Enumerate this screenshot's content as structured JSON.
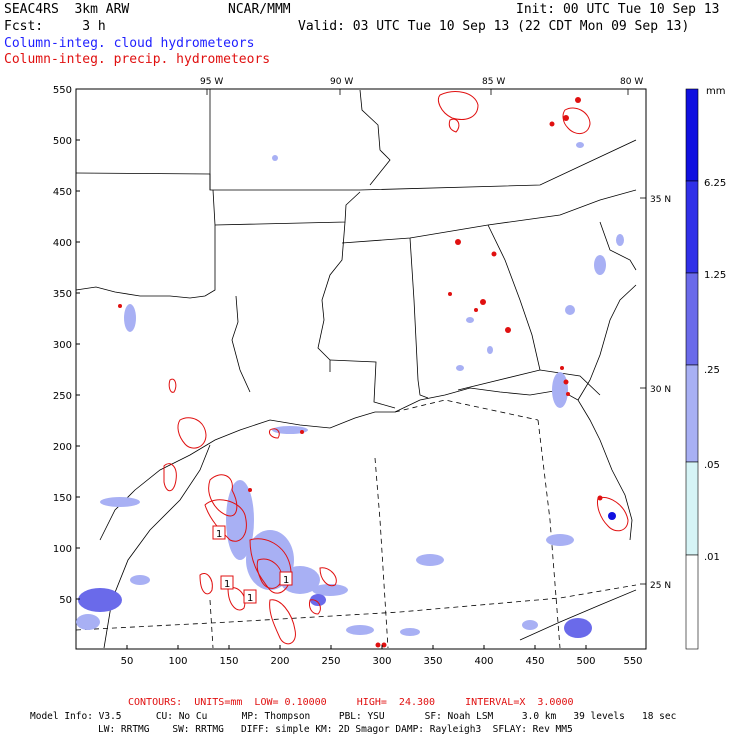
{
  "header": {
    "line1_left": "SEAC4RS  3km ARW",
    "line1_mid": "NCAR/MMM",
    "line1_right": "Init: 00 UTC Tue 10 Sep 13",
    "line2_left": "Fcst:     3 h",
    "line2_right": "Valid: 03 UTC Tue 10 Sep 13 (22 CDT Mon 09 Sep 13)",
    "field1": "Column-integ. cloud hydrometeors",
    "field2": "Column-integ. precip. hydrometeors"
  },
  "map": {
    "lon_labels": [
      "95 W",
      "90 W",
      "85 W",
      "80 W"
    ],
    "lat_labels": [
      "35 N",
      "30 N",
      "25 N"
    ],
    "y_ticks": [
      "550",
      "500",
      "450",
      "400",
      "350",
      "300",
      "250",
      "200",
      "150",
      "100",
      "50"
    ],
    "x_ticks": [
      "50",
      "100",
      "150",
      "200",
      "250",
      "300",
      "350",
      "400",
      "450",
      "500",
      "550"
    ],
    "contour_labels": [
      "1",
      "1",
      "1",
      "1"
    ]
  },
  "colorbar": {
    "unit": "mm",
    "labels": [
      "6.25",
      "1.25",
      ".25",
      ".05",
      ".01"
    ],
    "colors": [
      "#1010e0",
      "#3030e8",
      "#6a6aea",
      "#a8b0f4",
      "#d6f4f6",
      "#ffffff"
    ]
  },
  "footer": {
    "contours": "CONTOURS:  UNITS=mm  LOW= 0.10000     HIGH=  24.300     INTERVAL=X  3.0000",
    "model1": "Model Info: V3.5      CU: No Cu      MP: Thompson     PBL: YSU       SF: Noah LSM     3.0 km   39 levels   18 sec",
    "model2": "LW: RRTMG    SW: RRTMG   DIFF: simple KM: 2D Smagor DAMP: Rayleigh3  SFLAY: Rev MM5"
  },
  "colors": {
    "cloud_field": "#1f1fff",
    "precip_field": "#e01010"
  }
}
